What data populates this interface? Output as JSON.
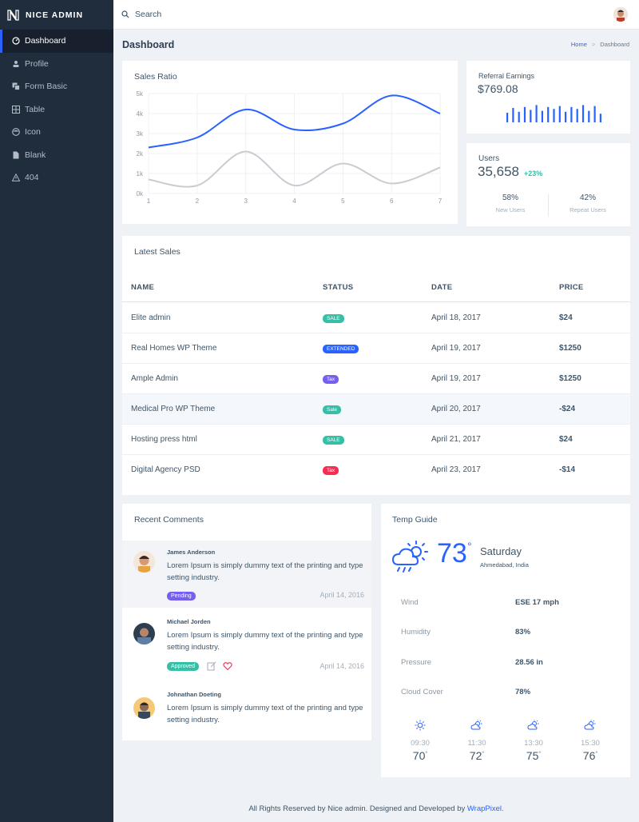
{
  "brand": {
    "name": "NICE ADMIN"
  },
  "sidebar": {
    "items": [
      {
        "label": "Dashboard",
        "icon": "dashboard-icon"
      },
      {
        "label": "Profile",
        "icon": "profile-icon"
      },
      {
        "label": "Form Basic",
        "icon": "form-icon"
      },
      {
        "label": "Table",
        "icon": "table-icon"
      },
      {
        "label": "Icon",
        "icon": "face-icon"
      },
      {
        "label": "Blank",
        "icon": "file-icon"
      },
      {
        "label": "404",
        "icon": "alert-icon"
      }
    ]
  },
  "topbar": {
    "search_placeholder": "Search"
  },
  "page": {
    "title": "Dashboard"
  },
  "breadcrumb": {
    "home": "Home",
    "current": "Dashboard"
  },
  "sales_ratio": {
    "title": "Sales Ratio"
  },
  "chart_data": {
    "type": "line",
    "x": [
      1,
      2,
      3,
      4,
      5,
      6,
      7
    ],
    "yticks": [
      "0k",
      "1k",
      "2k",
      "3k",
      "4k",
      "5k"
    ],
    "ylim": [
      0,
      5000
    ],
    "series": [
      {
        "color": "#2962ff",
        "values": [
          2300,
          2800,
          4200,
          3200,
          3500,
          4900,
          4000
        ]
      },
      {
        "color": "#c9cdd2",
        "values": [
          700,
          400,
          2100,
          400,
          1500,
          500,
          1300
        ]
      }
    ],
    "grid": true
  },
  "referral": {
    "label": "Referral Earnings",
    "value": "$769.08",
    "bar_color": "#2962ff",
    "bars": [
      0.5,
      0.75,
      0.55,
      0.8,
      0.65,
      0.9,
      0.6,
      0.8,
      0.7,
      0.85,
      0.55,
      0.8,
      0.7,
      0.9,
      0.6,
      0.85,
      0.45
    ]
  },
  "users": {
    "label": "Users",
    "value": "35,658",
    "change": "+23%",
    "new_pct": "58%",
    "new_label": "New Users",
    "repeat_pct": "42%",
    "repeat_label": "Repeat Users"
  },
  "latest_sales": {
    "title": "Latest Sales",
    "headers": {
      "name": "NAME",
      "status": "STATUS",
      "date": "DATE",
      "price": "PRICE"
    },
    "rows": [
      {
        "name": "Elite admin",
        "status": "SALE",
        "status_color": "#36bea6",
        "date": "April 18, 2017",
        "price": "$24"
      },
      {
        "name": "Real Homes WP Theme",
        "status": "EXTENDED",
        "status_color": "#2962ff",
        "date": "April 19, 2017",
        "price": "$1250"
      },
      {
        "name": "Ample Admin",
        "status": "Tax",
        "status_color": "#7460ee",
        "date": "April 19, 2017",
        "price": "$1250"
      },
      {
        "name": "Medical Pro WP Theme",
        "status": "Sale",
        "status_color": "#36bea6",
        "date": "April 20, 2017",
        "price": "-$24"
      },
      {
        "name": "Hosting press html",
        "status": "SALE",
        "status_color": "#36bea6",
        "date": "April 21, 2017",
        "price": "$24"
      },
      {
        "name": "Digital Agency PSD",
        "status": "Tax",
        "status_color": "#f62d51",
        "date": "April 23, 2017",
        "price": "-$14"
      }
    ]
  },
  "comments": {
    "title": "Recent Comments",
    "items": [
      {
        "name": "James Anderson",
        "text": "Lorem Ipsum is simply dummy text of the printing and type setting industry.",
        "badge": "Pending",
        "badge_color": "#7460ee",
        "date": "April 14, 2016"
      },
      {
        "name": "Michael Jorden",
        "text": "Lorem Ipsum is simply dummy text of the printing and type setting industry.",
        "badge": "Approved",
        "badge_color": "#36bea6",
        "date": "April 14, 2016"
      },
      {
        "name": "Johnathan Doeting",
        "text": "Lorem Ipsum is simply dummy text of the printing and type setting industry."
      }
    ]
  },
  "temp": {
    "title": "Temp Guide",
    "degree": "73",
    "degree_symbol": "°",
    "day": "Saturday",
    "location": "Ahmedabad, India",
    "rows": [
      {
        "k": "Wind",
        "v": "ESE 17 mph"
      },
      {
        "k": "Humidity",
        "v": "83%"
      },
      {
        "k": "Pressure",
        "v": "28.56 in"
      },
      {
        "k": "Cloud Cover",
        "v": "78%"
      }
    ],
    "forecast": [
      {
        "time": "09:30",
        "temp": "70",
        "icon": "sun-icon"
      },
      {
        "time": "11:30",
        "temp": "72",
        "icon": "cloud-sun-icon"
      },
      {
        "time": "13:30",
        "temp": "75",
        "icon": "cloud-sun-icon"
      },
      {
        "time": "15:30",
        "temp": "76",
        "icon": "cloud-sun-icon"
      }
    ]
  },
  "footer": {
    "text": "All Rights Reserved by Nice admin. Designed and Developed by",
    "link": "WrapPixel."
  }
}
